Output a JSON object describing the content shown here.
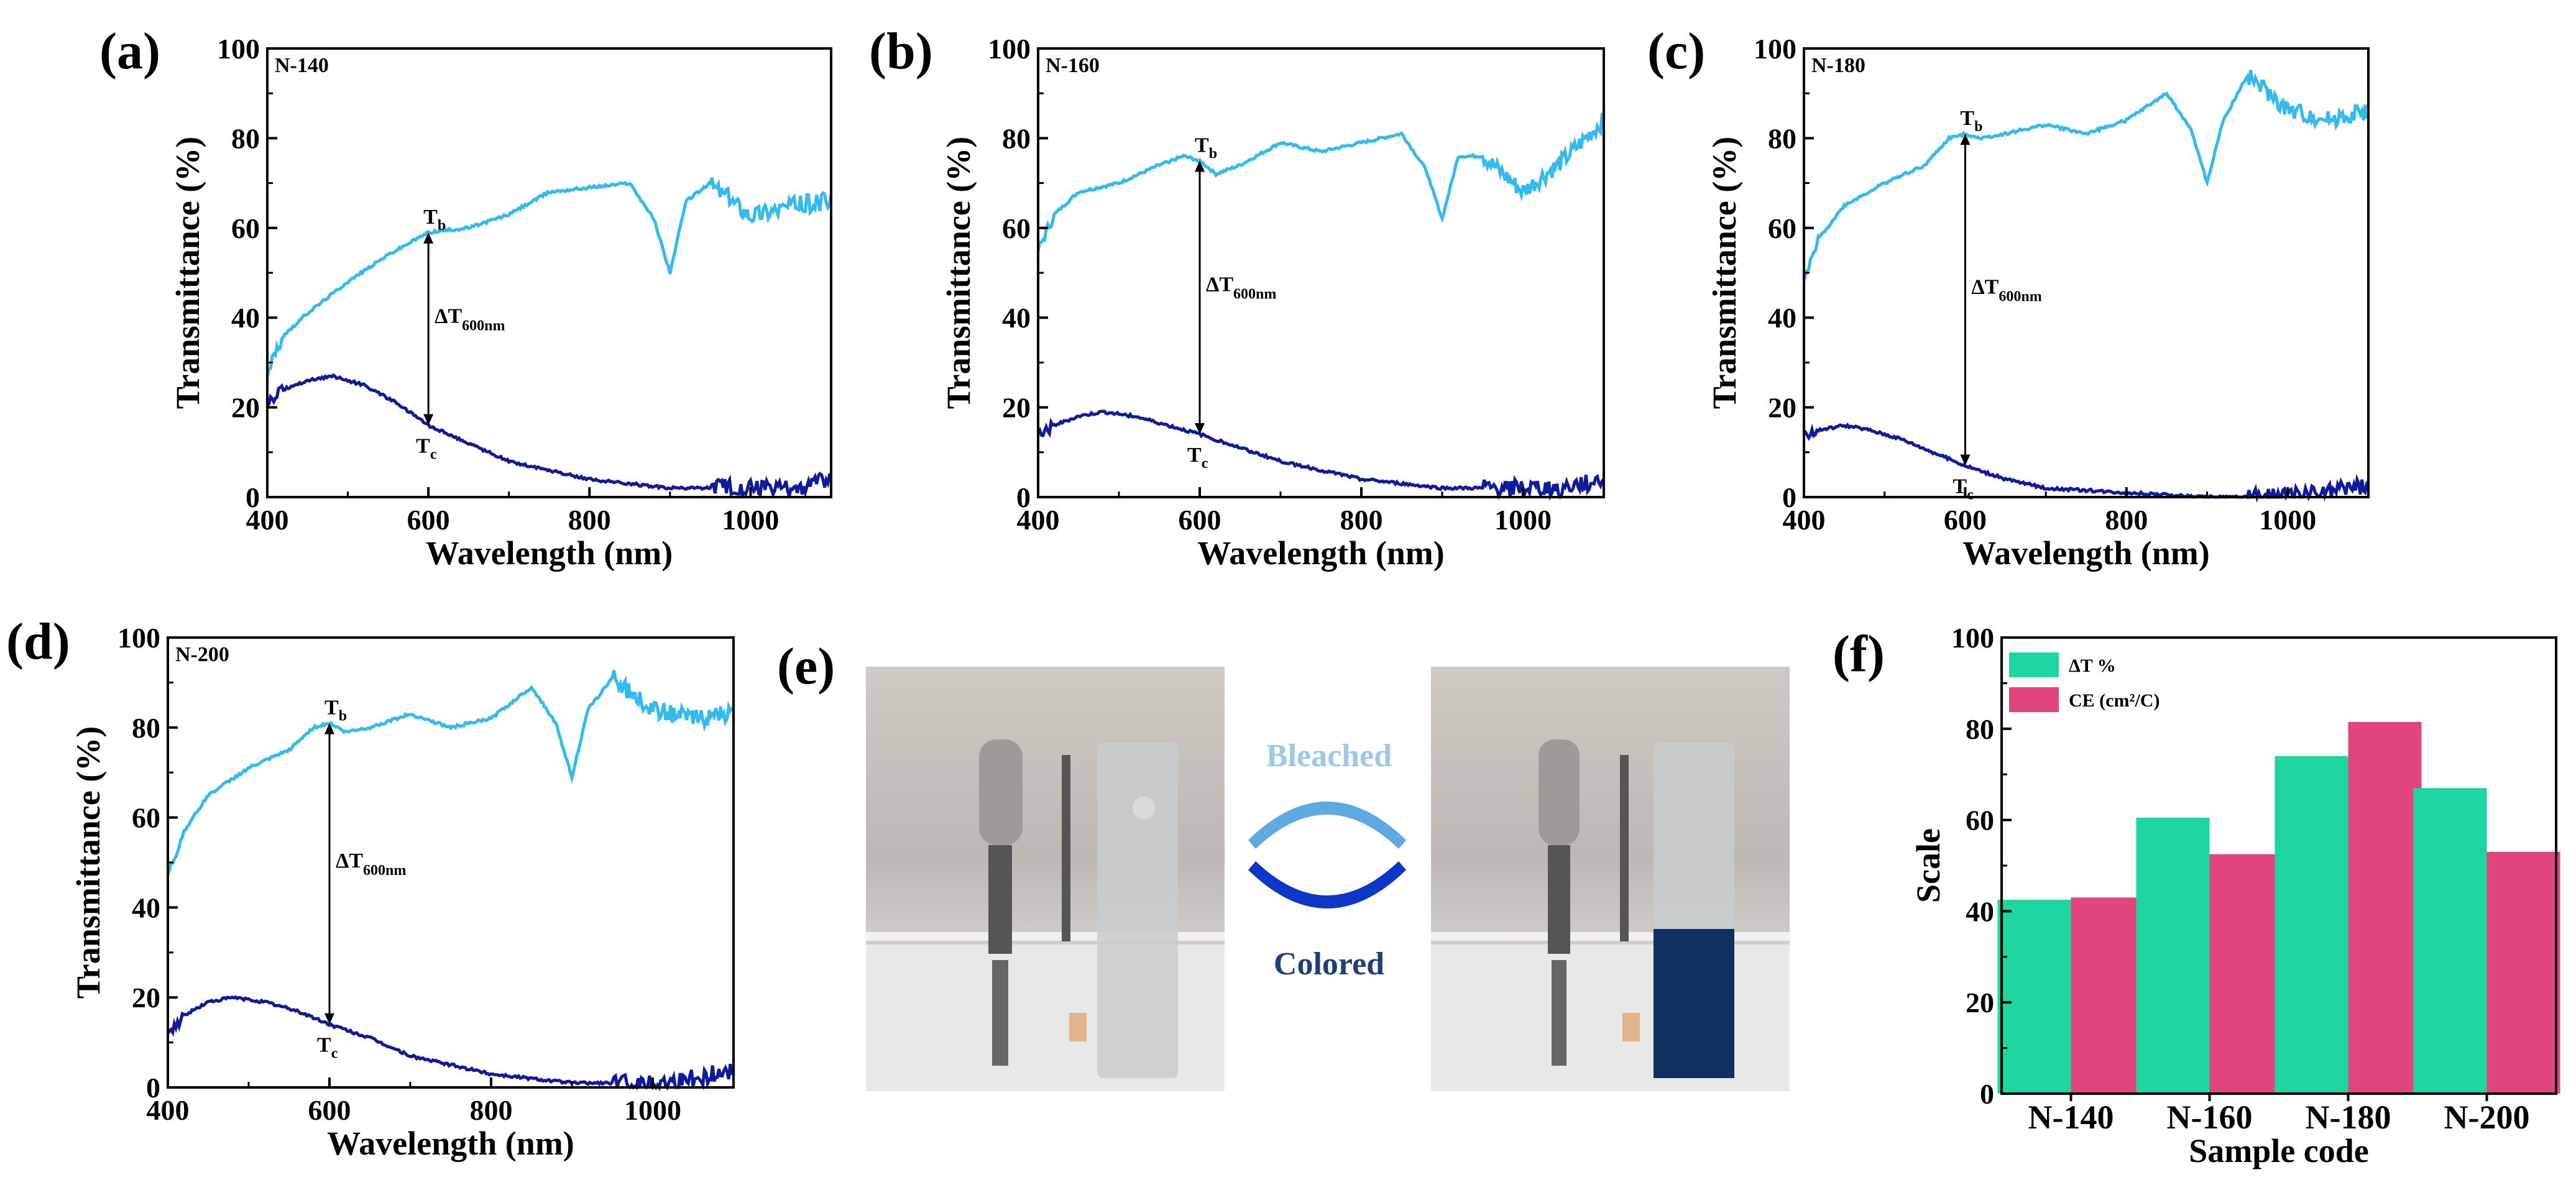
{
  "colors": {
    "bleached": "#33bbee",
    "colored": "#0f1a9c",
    "delta_t_bar": "#1fd6a3",
    "ce_bar": "#e0457e",
    "bleached_text": "#9cc9ea",
    "colored_text": "#1e3f7a",
    "ec_film": "#12305f"
  },
  "photo": {
    "label": "(e)",
    "bleached_label": "Bleached",
    "colored_label": "Colored"
  },
  "chart_data": [
    {
      "type": "line",
      "panel": "(a)",
      "sample": "N-140",
      "xlabel": "Wavelength (nm)",
      "ylabel": "Transmittance (%)",
      "xlim": [
        400,
        1100
      ],
      "ylim": [
        0,
        100
      ],
      "xticks": [
        400,
        600,
        800,
        1000
      ],
      "yticks": [
        0,
        20,
        40,
        60,
        80,
        100
      ],
      "annotation": {
        "tb": "T",
        "tb_sub": "b",
        "tc": "T",
        "tc_sub": "c",
        "delta": "ΔT",
        "delta_sub": "600nm",
        "x": 600
      },
      "series": [
        {
          "name": "Bleached",
          "x": [
            400,
            420,
            450,
            500,
            550,
            600,
            650,
            700,
            750,
            800,
            850,
            880,
            900,
            920,
            950,
            1000,
            1050,
            1100
          ],
          "y": [
            28,
            36,
            41,
            48,
            54,
            59,
            60,
            63,
            68,
            69,
            70,
            62,
            50,
            66,
            70,
            63,
            65,
            66
          ]
        },
        {
          "name": "Colored",
          "x": [
            400,
            420,
            450,
            480,
            520,
            560,
            600,
            650,
            700,
            800,
            900,
            1000,
            1050,
            1100
          ],
          "y": [
            21,
            24,
            26,
            27,
            25,
            21,
            16,
            12,
            8,
            4,
            2,
            2,
            2,
            4
          ]
        }
      ]
    },
    {
      "type": "line",
      "panel": "(b)",
      "sample": "N-160",
      "xlabel": "Wavelength (nm)",
      "ylabel": "Transmittance (%)",
      "xlim": [
        400,
        1100
      ],
      "ylim": [
        0,
        100
      ],
      "xticks": [
        400,
        600,
        800,
        1000
      ],
      "yticks": [
        0,
        20,
        40,
        60,
        80,
        100
      ],
      "annotation": {
        "tb": "T",
        "tb_sub": "b",
        "tc": "T",
        "tc_sub": "c",
        "delta": "ΔT",
        "delta_sub": "600nm",
        "x": 600
      },
      "series": [
        {
          "name": "Bleached",
          "x": [
            400,
            420,
            450,
            500,
            550,
            580,
            600,
            620,
            650,
            700,
            750,
            800,
            850,
            880,
            900,
            920,
            950,
            1000,
            1050,
            1100
          ],
          "y": [
            55,
            63,
            68,
            70,
            74,
            76,
            75,
            72,
            74,
            79,
            77,
            79,
            81,
            73,
            62,
            76,
            76,
            68,
            75,
            84
          ]
        },
        {
          "name": "Colored",
          "x": [
            400,
            420,
            450,
            480,
            520,
            560,
            600,
            650,
            700,
            800,
            900,
            1000,
            1050,
            1100
          ],
          "y": [
            14,
            16,
            18,
            19,
            18,
            16,
            14,
            11,
            8,
            4,
            2,
            2,
            2,
            4
          ]
        }
      ]
    },
    {
      "type": "line",
      "panel": "(c)",
      "sample": "N-180",
      "xlabel": "Wavelength (nm)",
      "ylabel": "Transmittance (%)",
      "xlim": [
        400,
        1100
      ],
      "ylim": [
        0,
        100
      ],
      "xticks": [
        400,
        600,
        800,
        1000
      ],
      "yticks": [
        0,
        20,
        40,
        60,
        80,
        100
      ],
      "annotation": {
        "tb": "T",
        "tb_sub": "b",
        "tc": "T",
        "tc_sub": "c",
        "delta": "ΔT",
        "delta_sub": "600nm",
        "x": 600
      },
      "series": [
        {
          "name": "Bleached",
          "x": [
            400,
            420,
            450,
            500,
            550,
            580,
            600,
            620,
            650,
            700,
            750,
            800,
            850,
            880,
            900,
            920,
            950,
            1000,
            1050,
            1100
          ],
          "y": [
            48,
            58,
            65,
            70,
            74,
            80,
            81,
            80,
            81,
            83,
            81,
            84,
            90,
            82,
            70,
            84,
            94,
            86,
            84,
            86
          ]
        },
        {
          "name": "Colored",
          "x": [
            400,
            420,
            450,
            480,
            520,
            560,
            600,
            650,
            700,
            800,
            900,
            1000,
            1050,
            1100
          ],
          "y": [
            14,
            15,
            16,
            15,
            13,
            10,
            7,
            4,
            2,
            1,
            0,
            0,
            1,
            3
          ]
        }
      ]
    },
    {
      "type": "line",
      "panel": "(d)",
      "sample": "N-200",
      "xlabel": "Wavelength (nm)",
      "ylabel": "Transmittance (%)",
      "xlim": [
        400,
        1100
      ],
      "ylim": [
        0,
        100
      ],
      "xticks": [
        400,
        600,
        800,
        1000
      ],
      "yticks": [
        0,
        20,
        40,
        60,
        80,
        100
      ],
      "annotation": {
        "tb": "T",
        "tb_sub": "b",
        "tc": "T",
        "tc_sub": "c",
        "delta": "ΔT",
        "delta_sub": "600nm",
        "x": 600
      },
      "series": [
        {
          "name": "Bleached",
          "x": [
            400,
            420,
            450,
            500,
            550,
            580,
            600,
            620,
            650,
            700,
            750,
            800,
            850,
            880,
            900,
            920,
            950,
            1000,
            1050,
            1100
          ],
          "y": [
            47,
            57,
            65,
            71,
            75,
            80,
            81,
            79,
            80,
            83,
            80,
            82,
            89,
            81,
            69,
            84,
            91,
            84,
            82,
            83
          ]
        },
        {
          "name": "Colored",
          "x": [
            400,
            420,
            450,
            480,
            520,
            560,
            600,
            650,
            700,
            800,
            900,
            1000,
            1050,
            1100
          ],
          "y": [
            12,
            16,
            19,
            20,
            19,
            17,
            14,
            11,
            7,
            3,
            1,
            1,
            2,
            4
          ]
        }
      ]
    },
    {
      "type": "bar",
      "panel": "(f)",
      "xlabel": "Sample code",
      "ylabel": "Scale",
      "categories": [
        "N-140",
        "N-160",
        "N-180",
        "N-200"
      ],
      "ylim": [
        0,
        100
      ],
      "yticks": [
        0,
        20,
        40,
        60,
        80,
        100
      ],
      "series": [
        {
          "name": "ΔT %",
          "values": [
            42.5,
            60.5,
            74,
            67
          ]
        },
        {
          "name": "CE (cm²/C)",
          "values": [
            43,
            52.5,
            81.5,
            53
          ]
        }
      ]
    }
  ]
}
